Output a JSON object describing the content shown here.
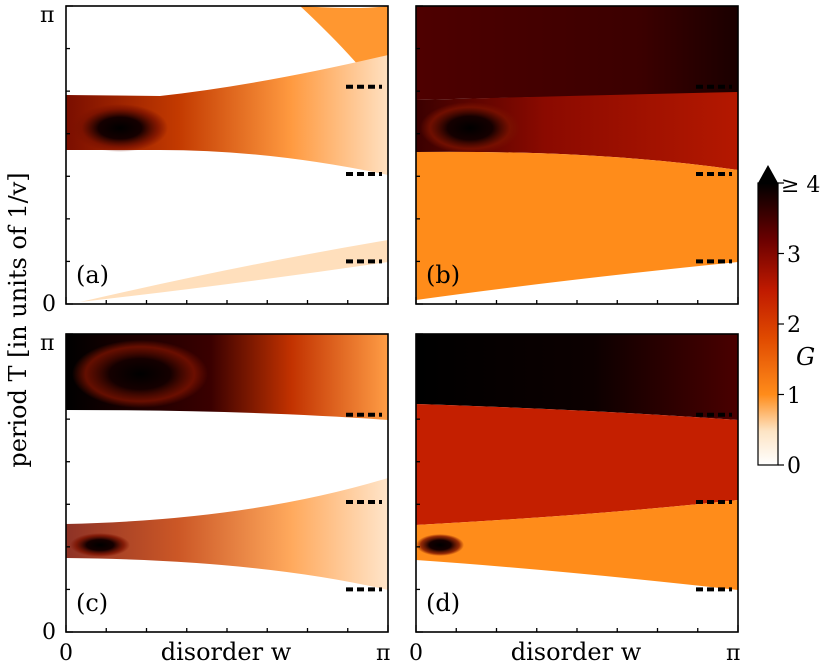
{
  "chart_data": {
    "type": "heatmap",
    "x_axis": {
      "label": "disorder w",
      "range": [
        0,
        3.14159
      ],
      "tick_labels": [
        "0",
        "π"
      ]
    },
    "y_axis": {
      "label": "period T [in units of 1/v]",
      "range": [
        0,
        3.14159
      ],
      "tick_labels": [
        "0",
        "π"
      ]
    },
    "colorbar": {
      "label": "G",
      "range": [
        0,
        4
      ],
      "tick_labels": [
        "0",
        "1",
        "2",
        "3",
        "≥ 4"
      ],
      "extend": "max",
      "colormap": [
        "#ffffff",
        "#fdc88a",
        "#ff8c1a",
        "#d12a00",
        "#8b0000",
        "#000000"
      ]
    },
    "panels": [
      {
        "label": "(a)",
        "marker_T": [
          0.45,
          1.37,
          2.29
        ],
        "regions": [
          {
            "T": [
              1.48,
              2.2
            ],
            "w_at_peak": 0.5,
            "G_peak": 4,
            "note": "dark core"
          },
          {
            "T": [
              0.0,
              0.45
            ],
            "G": 0.2,
            "note": "faint band growing with w"
          }
        ]
      },
      {
        "label": "(b)",
        "marker_T": [
          0.45,
          1.37,
          2.29
        ],
        "regions": [
          {
            "T": [
              2.3,
              3.14
            ],
            "G": 3.3
          },
          {
            "T": [
              1.55,
              2.2
            ],
            "G": 2.0
          },
          {
            "T": [
              0.0,
              1.55
            ],
            "G": 1.0
          }
        ]
      },
      {
        "label": "(c)",
        "marker_T": [
          0.45,
          1.37,
          2.29
        ],
        "regions": [
          {
            "T": [
              2.35,
              3.14
            ],
            "w_at_peak": 0.8,
            "G_peak": 4
          },
          {
            "T": [
              0.9,
              1.1
            ],
            "w_at_peak": 0.3,
            "G_peak": 3.5
          }
        ]
      },
      {
        "label": "(d)",
        "marker_T": [
          0.45,
          1.37,
          2.29
        ],
        "regions": [
          {
            "T": [
              2.4,
              3.14
            ],
            "G": 4
          },
          {
            "T": [
              1.0,
              2.4
            ],
            "G": 2.0
          },
          {
            "T": [
              0.45,
              1.0
            ],
            "G": 1.0
          }
        ]
      }
    ]
  }
}
